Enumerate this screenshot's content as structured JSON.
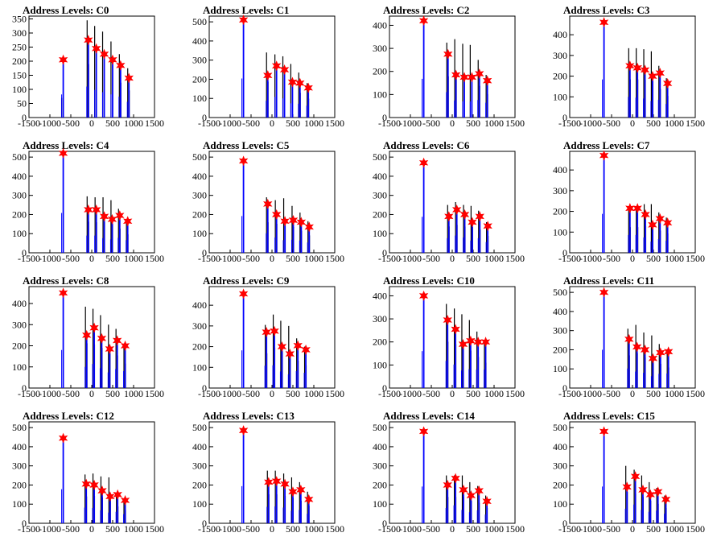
{
  "colors": {
    "peak": "#0000ff",
    "bg_hist": "#000000",
    "marker": "#ff0000",
    "frame": "#000000"
  },
  "chart_data": [
    {
      "type": "bar",
      "title": "Address Levels: C0",
      "xlim": [
        -1500,
        1500
      ],
      "ylim": [
        0,
        360
      ],
      "yticks": [
        0,
        50,
        100,
        150,
        200,
        250,
        300,
        350
      ],
      "xticks": [
        -1500,
        -1000,
        -500,
        0,
        500,
        1000,
        1500
      ],
      "peaks": [
        {
          "x": -700,
          "y": 205
        },
        {
          "x": -100,
          "y": 275
        },
        {
          "x": 90,
          "y": 245
        },
        {
          "x": 280,
          "y": 225
        },
        {
          "x": 480,
          "y": 205
        },
        {
          "x": 670,
          "y": 185
        },
        {
          "x": 870,
          "y": 140
        }
      ],
      "background": [
        {
          "x": -720,
          "y": 70
        },
        {
          "x": -110,
          "y": 345
        },
        {
          "x": 70,
          "y": 325
        },
        {
          "x": 260,
          "y": 305
        },
        {
          "x": 460,
          "y": 270
        },
        {
          "x": 660,
          "y": 225
        },
        {
          "x": 860,
          "y": 175
        }
      ]
    },
    {
      "type": "bar",
      "title": "Address Levels: C1",
      "xlim": [
        -1500,
        1500
      ],
      "ylim": [
        0,
        530
      ],
      "yticks": [
        0,
        100,
        200,
        300,
        400,
        500
      ],
      "xticks": [
        -1500,
        -1000,
        -500,
        0,
        500,
        1000,
        1500
      ],
      "peaks": [
        {
          "x": -700,
          "y": 510
        },
        {
          "x": -120,
          "y": 220
        },
        {
          "x": 90,
          "y": 270
        },
        {
          "x": 280,
          "y": 250
        },
        {
          "x": 470,
          "y": 185
        },
        {
          "x": 650,
          "y": 180
        },
        {
          "x": 850,
          "y": 155
        }
      ],
      "background": [
        {
          "x": -130,
          "y": 340
        },
        {
          "x": 70,
          "y": 330
        },
        {
          "x": 260,
          "y": 320
        },
        {
          "x": 450,
          "y": 280
        },
        {
          "x": 640,
          "y": 235
        },
        {
          "x": 840,
          "y": 180
        }
      ]
    },
    {
      "type": "bar",
      "title": "Address Levels: C2",
      "xlim": [
        -1500,
        1500
      ],
      "ylim": [
        0,
        440
      ],
      "yticks": [
        0,
        100,
        200,
        300,
        400
      ],
      "xticks": [
        -1500,
        -1000,
        -500,
        0,
        500,
        1000,
        1500
      ],
      "peaks": [
        {
          "x": -700,
          "y": 420
        },
        {
          "x": -120,
          "y": 275
        },
        {
          "x": 70,
          "y": 185
        },
        {
          "x": 270,
          "y": 175
        },
        {
          "x": 450,
          "y": 175
        },
        {
          "x": 630,
          "y": 190
        },
        {
          "x": 820,
          "y": 160
        }
      ],
      "background": [
        {
          "x": -130,
          "y": 325
        },
        {
          "x": 60,
          "y": 340
        },
        {
          "x": 250,
          "y": 320
        },
        {
          "x": 430,
          "y": 315
        },
        {
          "x": 620,
          "y": 250
        },
        {
          "x": 810,
          "y": 185
        }
      ]
    },
    {
      "type": "bar",
      "title": "Address Levels: C3",
      "xlim": [
        -1500,
        1500
      ],
      "ylim": [
        0,
        490
      ],
      "yticks": [
        0,
        100,
        200,
        300,
        400
      ],
      "xticks": [
        -1500,
        -1000,
        -500,
        0,
        500,
        1000,
        1500
      ],
      "peaks": [
        {
          "x": -700,
          "y": 460
        },
        {
          "x": -80,
          "y": 250
        },
        {
          "x": 100,
          "y": 240
        },
        {
          "x": 280,
          "y": 230
        },
        {
          "x": 460,
          "y": 200
        },
        {
          "x": 640,
          "y": 215
        },
        {
          "x": 820,
          "y": 165
        }
      ],
      "background": [
        {
          "x": -90,
          "y": 335
        },
        {
          "x": 90,
          "y": 335
        },
        {
          "x": 270,
          "y": 330
        },
        {
          "x": 450,
          "y": 320
        },
        {
          "x": 630,
          "y": 250
        },
        {
          "x": 810,
          "y": 190
        }
      ]
    },
    {
      "type": "bar",
      "title": "Address Levels: C4",
      "xlim": [
        -1500,
        1500
      ],
      "ylim": [
        0,
        530
      ],
      "yticks": [
        0,
        100,
        200,
        300,
        400,
        500
      ],
      "xticks": [
        -1500,
        -1000,
        -500,
        0,
        500,
        1000,
        1500
      ],
      "peaks": [
        {
          "x": -700,
          "y": 520
        },
        {
          "x": -100,
          "y": 225
        },
        {
          "x": 90,
          "y": 225
        },
        {
          "x": 280,
          "y": 190
        },
        {
          "x": 470,
          "y": 175
        },
        {
          "x": 650,
          "y": 195
        },
        {
          "x": 840,
          "y": 165
        }
      ],
      "background": [
        {
          "x": -110,
          "y": 295
        },
        {
          "x": 80,
          "y": 290
        },
        {
          "x": 270,
          "y": 290
        },
        {
          "x": 460,
          "y": 275
        },
        {
          "x": 640,
          "y": 230
        },
        {
          "x": 830,
          "y": 175
        }
      ]
    },
    {
      "type": "bar",
      "title": "Address Levels: C5",
      "xlim": [
        -1500,
        1500
      ],
      "ylim": [
        0,
        530
      ],
      "yticks": [
        0,
        100,
        200,
        300,
        400,
        500
      ],
      "xticks": [
        -1500,
        -1000,
        -500,
        0,
        500,
        1000,
        1500
      ],
      "peaks": [
        {
          "x": -700,
          "y": 480
        },
        {
          "x": -120,
          "y": 255
        },
        {
          "x": 90,
          "y": 200
        },
        {
          "x": 290,
          "y": 165
        },
        {
          "x": 490,
          "y": 170
        },
        {
          "x": 680,
          "y": 160
        },
        {
          "x": 870,
          "y": 135
        }
      ],
      "background": [
        {
          "x": -130,
          "y": 290
        },
        {
          "x": 80,
          "y": 275
        },
        {
          "x": 280,
          "y": 285
        },
        {
          "x": 480,
          "y": 245
        },
        {
          "x": 670,
          "y": 210
        },
        {
          "x": 860,
          "y": 165
        }
      ]
    },
    {
      "type": "bar",
      "title": "Address Levels: C6",
      "xlim": [
        -1500,
        1500
      ],
      "ylim": [
        0,
        530
      ],
      "yticks": [
        0,
        100,
        200,
        300,
        400,
        500
      ],
      "xticks": [
        -1500,
        -1000,
        -500,
        0,
        500,
        1000,
        1500
      ],
      "peaks": [
        {
          "x": -700,
          "y": 470
        },
        {
          "x": -100,
          "y": 190
        },
        {
          "x": 90,
          "y": 225
        },
        {
          "x": 280,
          "y": 200
        },
        {
          "x": 460,
          "y": 160
        },
        {
          "x": 640,
          "y": 190
        },
        {
          "x": 830,
          "y": 140
        }
      ],
      "background": [
        {
          "x": -110,
          "y": 250
        },
        {
          "x": 80,
          "y": 265
        },
        {
          "x": 270,
          "y": 250
        },
        {
          "x": 450,
          "y": 245
        },
        {
          "x": 630,
          "y": 220
        },
        {
          "x": 820,
          "y": 160
        }
      ]
    },
    {
      "type": "bar",
      "title": "Address Levels: C7",
      "xlim": [
        -1500,
        1500
      ],
      "ylim": [
        0,
        490
      ],
      "yticks": [
        0,
        100,
        200,
        300,
        400
      ],
      "xticks": [
        -1500,
        -1000,
        -500,
        0,
        500,
        1000,
        1500
      ],
      "peaks": [
        {
          "x": -700,
          "y": 470
        },
        {
          "x": -80,
          "y": 215
        },
        {
          "x": 100,
          "y": 215
        },
        {
          "x": 290,
          "y": 185
        },
        {
          "x": 460,
          "y": 135
        },
        {
          "x": 640,
          "y": 165
        },
        {
          "x": 820,
          "y": 145
        }
      ],
      "background": [
        {
          "x": -90,
          "y": 225
        },
        {
          "x": 90,
          "y": 225
        },
        {
          "x": 280,
          "y": 235
        },
        {
          "x": 450,
          "y": 235
        },
        {
          "x": 630,
          "y": 195
        },
        {
          "x": 810,
          "y": 170
        }
      ]
    },
    {
      "type": "bar",
      "title": "Address Levels: C8",
      "xlim": [
        -1500,
        1500
      ],
      "ylim": [
        0,
        480
      ],
      "yticks": [
        0,
        100,
        200,
        300,
        400
      ],
      "xticks": [
        -1500,
        -1000,
        -500,
        0,
        500,
        1000,
        1500
      ],
      "peaks": [
        {
          "x": -700,
          "y": 450
        },
        {
          "x": -140,
          "y": 250
        },
        {
          "x": 40,
          "y": 285
        },
        {
          "x": 220,
          "y": 235
        },
        {
          "x": 410,
          "y": 185
        },
        {
          "x": 590,
          "y": 225
        },
        {
          "x": 780,
          "y": 200
        }
      ],
      "background": [
        {
          "x": -150,
          "y": 385
        },
        {
          "x": 30,
          "y": 375
        },
        {
          "x": 210,
          "y": 345
        },
        {
          "x": 400,
          "y": 300
        },
        {
          "x": 580,
          "y": 280
        },
        {
          "x": 770,
          "y": 210
        }
      ]
    },
    {
      "type": "bar",
      "title": "Address Levels: C9",
      "xlim": [
        -1500,
        1500
      ],
      "ylim": [
        0,
        490
      ],
      "yticks": [
        0,
        100,
        200,
        300,
        400
      ],
      "xticks": [
        -1500,
        -1000,
        -500,
        0,
        500,
        1000,
        1500
      ],
      "peaks": [
        {
          "x": -700,
          "y": 455
        },
        {
          "x": -150,
          "y": 270
        },
        {
          "x": 40,
          "y": 275
        },
        {
          "x": 220,
          "y": 200
        },
        {
          "x": 410,
          "y": 165
        },
        {
          "x": 600,
          "y": 205
        },
        {
          "x": 790,
          "y": 185
        }
      ],
      "background": [
        {
          "x": -160,
          "y": 305
        },
        {
          "x": 30,
          "y": 355
        },
        {
          "x": 210,
          "y": 325
        },
        {
          "x": 400,
          "y": 300
        },
        {
          "x": 590,
          "y": 240
        },
        {
          "x": 780,
          "y": 200
        }
      ]
    },
    {
      "type": "bar",
      "title": "Address Levels: C10",
      "xlim": [
        -1500,
        1500
      ],
      "ylim": [
        0,
        440
      ],
      "yticks": [
        0,
        100,
        200,
        300,
        400
      ],
      "xticks": [
        -1500,
        -1000,
        -500,
        0,
        500,
        1000,
        1500
      ],
      "peaks": [
        {
          "x": -700,
          "y": 400
        },
        {
          "x": -130,
          "y": 295
        },
        {
          "x": 60,
          "y": 255
        },
        {
          "x": 240,
          "y": 190
        },
        {
          "x": 420,
          "y": 205
        },
        {
          "x": 600,
          "y": 200
        },
        {
          "x": 780,
          "y": 200
        }
      ],
      "background": [
        {
          "x": -140,
          "y": 365
        },
        {
          "x": 50,
          "y": 345
        },
        {
          "x": 230,
          "y": 320
        },
        {
          "x": 410,
          "y": 295
        },
        {
          "x": 590,
          "y": 245
        },
        {
          "x": 770,
          "y": 200
        }
      ]
    },
    {
      "type": "bar",
      "title": "Address Levels: C11",
      "xlim": [
        -1500,
        1500
      ],
      "ylim": [
        0,
        530
      ],
      "yticks": [
        0,
        100,
        200,
        300,
        400,
        500
      ],
      "xticks": [
        -1500,
        -1000,
        -500,
        0,
        500,
        1000,
        1500
      ],
      "peaks": [
        {
          "x": -700,
          "y": 500
        },
        {
          "x": -100,
          "y": 255
        },
        {
          "x": 90,
          "y": 215
        },
        {
          "x": 280,
          "y": 200
        },
        {
          "x": 470,
          "y": 155
        },
        {
          "x": 650,
          "y": 185
        },
        {
          "x": 840,
          "y": 190
        }
      ],
      "background": [
        {
          "x": -110,
          "y": 310
        },
        {
          "x": 80,
          "y": 330
        },
        {
          "x": 270,
          "y": 290
        },
        {
          "x": 460,
          "y": 275
        },
        {
          "x": 640,
          "y": 230
        },
        {
          "x": 830,
          "y": 195
        }
      ]
    },
    {
      "type": "bar",
      "title": "Address Levels: C12",
      "xlim": [
        -1500,
        1500
      ],
      "ylim": [
        0,
        530
      ],
      "yticks": [
        0,
        100,
        200,
        300,
        400,
        500
      ],
      "xticks": [
        -1500,
        -1000,
        -500,
        0,
        500,
        1000,
        1500
      ],
      "peaks": [
        {
          "x": -700,
          "y": 445
        },
        {
          "x": -150,
          "y": 205
        },
        {
          "x": 40,
          "y": 200
        },
        {
          "x": 230,
          "y": 170
        },
        {
          "x": 420,
          "y": 140
        },
        {
          "x": 600,
          "y": 150
        },
        {
          "x": 780,
          "y": 120
        }
      ],
      "background": [
        {
          "x": -160,
          "y": 255
        },
        {
          "x": 30,
          "y": 260
        },
        {
          "x": 220,
          "y": 245
        },
        {
          "x": 410,
          "y": 240
        },
        {
          "x": 590,
          "y": 160
        },
        {
          "x": 770,
          "y": 125
        }
      ]
    },
    {
      "type": "bar",
      "title": "Address Levels: C13",
      "xlim": [
        -1500,
        1500
      ],
      "ylim": [
        0,
        530
      ],
      "yticks": [
        0,
        100,
        200,
        300,
        400,
        500
      ],
      "xticks": [
        -1500,
        -1000,
        -500,
        0,
        500,
        1000,
        1500
      ],
      "peaks": [
        {
          "x": -700,
          "y": 485
        },
        {
          "x": -100,
          "y": 215
        },
        {
          "x": 90,
          "y": 220
        },
        {
          "x": 290,
          "y": 205
        },
        {
          "x": 480,
          "y": 165
        },
        {
          "x": 670,
          "y": 175
        },
        {
          "x": 860,
          "y": 125
        }
      ],
      "background": [
        {
          "x": -110,
          "y": 275
        },
        {
          "x": 80,
          "y": 275
        },
        {
          "x": 280,
          "y": 260
        },
        {
          "x": 470,
          "y": 240
        },
        {
          "x": 660,
          "y": 215
        },
        {
          "x": 850,
          "y": 165
        }
      ]
    },
    {
      "type": "bar",
      "title": "Address Levels: C14",
      "xlim": [
        -1500,
        1500
      ],
      "ylim": [
        0,
        530
      ],
      "yticks": [
        0,
        100,
        200,
        300,
        400,
        500
      ],
      "xticks": [
        -1500,
        -1000,
        -500,
        0,
        500,
        1000,
        1500
      ],
      "peaks": [
        {
          "x": -700,
          "y": 480
        },
        {
          "x": -130,
          "y": 200
        },
        {
          "x": 60,
          "y": 235
        },
        {
          "x": 250,
          "y": 175
        },
        {
          "x": 430,
          "y": 145
        },
        {
          "x": 620,
          "y": 170
        },
        {
          "x": 810,
          "y": 115
        }
      ],
      "background": [
        {
          "x": -140,
          "y": 250
        },
        {
          "x": 50,
          "y": 250
        },
        {
          "x": 240,
          "y": 250
        },
        {
          "x": 420,
          "y": 215
        },
        {
          "x": 610,
          "y": 195
        },
        {
          "x": 800,
          "y": 145
        }
      ]
    },
    {
      "type": "bar",
      "title": "Address Levels: C15",
      "xlim": [
        -1500,
        1500
      ],
      "ylim": [
        0,
        530
      ],
      "yticks": [
        0,
        100,
        200,
        300,
        400,
        500
      ],
      "xticks": [
        -1500,
        -1000,
        -500,
        0,
        500,
        1000,
        1500
      ],
      "peaks": [
        {
          "x": -700,
          "y": 480
        },
        {
          "x": -150,
          "y": 190
        },
        {
          "x": 50,
          "y": 245
        },
        {
          "x": 230,
          "y": 175
        },
        {
          "x": 410,
          "y": 150
        },
        {
          "x": 590,
          "y": 165
        },
        {
          "x": 780,
          "y": 125
        }
      ],
      "background": [
        {
          "x": -160,
          "y": 300
        },
        {
          "x": 40,
          "y": 280
        },
        {
          "x": 220,
          "y": 250
        },
        {
          "x": 400,
          "y": 215
        },
        {
          "x": 580,
          "y": 185
        },
        {
          "x": 770,
          "y": 145
        }
      ]
    }
  ]
}
